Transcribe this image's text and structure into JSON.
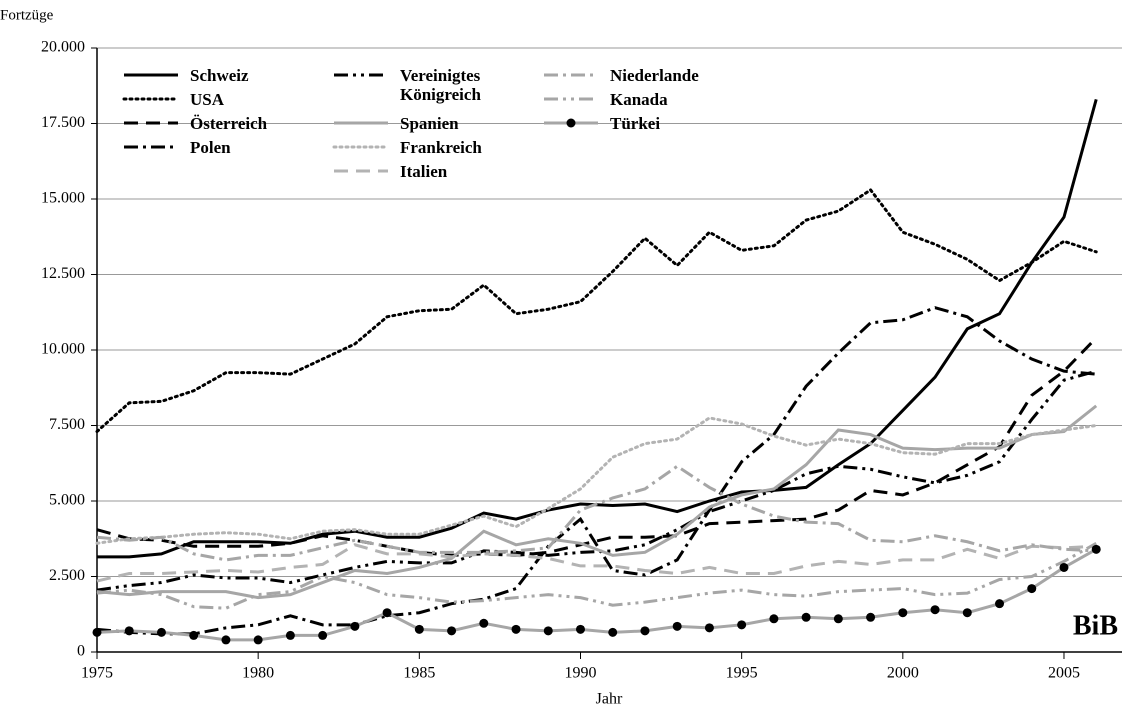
{
  "chart_data": {
    "type": "line",
    "y_label": "Fortzüge",
    "x_label": "Jahr",
    "logo": "BiB",
    "x": [
      1975,
      1976,
      1977,
      1978,
      1979,
      1980,
      1981,
      1982,
      1983,
      1984,
      1985,
      1986,
      1987,
      1988,
      1989,
      1990,
      1991,
      1992,
      1993,
      1994,
      1995,
      1996,
      1997,
      1998,
      1999,
      2000,
      2001,
      2002,
      2003,
      2004,
      2005,
      2006
    ],
    "xlim": [
      1975,
      2006.8
    ],
    "xticks": [
      1975,
      1980,
      1985,
      1990,
      1995,
      2000,
      2005
    ],
    "ylim": [
      0,
      20000
    ],
    "yticks": [
      0,
      {
        "value": 2500,
        "label": "2.500"
      },
      {
        "value": 5000,
        "label": "5.000"
      },
      {
        "value": 7500,
        "label": "7.500"
      },
      {
        "value": 10000,
        "label": "10.000"
      },
      {
        "value": 12500,
        "label": "12.500"
      },
      {
        "value": 15000,
        "label": "15.000"
      },
      {
        "value": 17500,
        "label": "17.500"
      },
      {
        "value": 20000,
        "label": "20.000"
      }
    ],
    "grid": true,
    "legend": "upper left",
    "series": [
      {
        "name": "Schweiz",
        "color": "#000000",
        "style": "solid",
        "values": [
          3150,
          3150,
          3250,
          3650,
          3650,
          3650,
          3600,
          3900,
          4000,
          3800,
          3800,
          4100,
          4600,
          4400,
          4700,
          4900,
          4850,
          4900,
          4650,
          5000,
          5300,
          5350,
          5450,
          6200,
          6900,
          8000,
          9100,
          10700,
          11200,
          12900,
          14400,
          18300
        ]
      },
      {
        "name": "USA",
        "color": "#000000",
        "style": "dotted",
        "values": [
          7300,
          8250,
          8300,
          8650,
          9250,
          9250,
          9200,
          9700,
          10200,
          11100,
          11300,
          11350,
          12150,
          11200,
          11350,
          11600,
          12600,
          13700,
          12800,
          13900,
          13300,
          13450,
          14300,
          14600,
          15300,
          13900,
          13500,
          13000,
          12300,
          12900,
          13600,
          13250
        ]
      },
      {
        "name": "Österreich",
        "color": "#000000",
        "style": "dashed",
        "values": [
          4050,
          3750,
          3700,
          3500,
          3500,
          3500,
          3600,
          3850,
          3700,
          3500,
          3300,
          3200,
          3250,
          3200,
          3300,
          3550,
          3800,
          3800,
          3850,
          4250,
          4300,
          4350,
          4400,
          4700,
          5350,
          5200,
          5600,
          6200,
          6800,
          8500,
          9300,
          10400
        ]
      },
      {
        "name": "Polen",
        "color": "#000000",
        "style": "dashdot",
        "values": [
          750,
          650,
          600,
          600,
          800,
          900,
          1200,
          900,
          900,
          1200,
          1300,
          1600,
          1750,
          2100,
          3500,
          4400,
          2700,
          2550,
          3050,
          4700,
          6300,
          7200,
          8800,
          9900,
          10900,
          11000,
          11400,
          11100,
          10300,
          9700,
          9300,
          9200
        ]
      },
      {
        "name": "Vereinigtes Königreich",
        "color": "#000000",
        "style": "dashdotdot",
        "values": [
          2050,
          2200,
          2300,
          2550,
          2450,
          2450,
          2300,
          2550,
          2800,
          3000,
          2950,
          2950,
          3350,
          3300,
          3200,
          3300,
          3350,
          3550,
          4050,
          4650,
          5000,
          5350,
          5900,
          6150,
          6050,
          5800,
          5600,
          5850,
          6300,
          7700,
          9000,
          9300
        ]
      },
      {
        "name": "Spanien",
        "color": "#a6a6a6",
        "style": "solid",
        "values": [
          2000,
          1900,
          2000,
          2000,
          2000,
          1800,
          1900,
          2300,
          2700,
          2600,
          2800,
          3100,
          4000,
          3550,
          3750,
          3600,
          3200,
          3300,
          3900,
          4800,
          5200,
          5400,
          6200,
          7350,
          7200,
          6750,
          6700,
          6750,
          6750,
          7200,
          7300,
          8150
        ]
      },
      {
        "name": "Frankreich",
        "color": "#b3b3b3",
        "style": "dotted",
        "values": [
          3600,
          3750,
          3800,
          3900,
          3950,
          3900,
          3750,
          4000,
          4050,
          3900,
          3900,
          4200,
          4500,
          4150,
          4750,
          5400,
          6450,
          6900,
          7050,
          7750,
          7550,
          7150,
          6850,
          7050,
          6900,
          6600,
          6550,
          6900,
          6900,
          7200,
          7350,
          7500
        ]
      },
      {
        "name": "Italien",
        "color": "#b3b3b3",
        "style": "dashed",
        "values": [
          2350,
          2600,
          2600,
          2650,
          2700,
          2650,
          2800,
          2900,
          3550,
          3250,
          3250,
          3150,
          3250,
          3200,
          3100,
          2850,
          2850,
          2700,
          2600,
          2800,
          2600,
          2600,
          2850,
          3000,
          2900,
          3050,
          3050,
          3400,
          3100,
          3500,
          3450,
          3500
        ]
      },
      {
        "name": "Niederlande",
        "color": "#a6a6a6",
        "style": "dashdot",
        "values": [
          3800,
          3700,
          3800,
          3250,
          3050,
          3200,
          3200,
          3450,
          3700,
          3500,
          3300,
          3300,
          3300,
          3350,
          3450,
          4700,
          5100,
          5400,
          6150,
          5450,
          4900,
          4500,
          4300,
          4250,
          3700,
          3650,
          3850,
          3650,
          3350,
          3550,
          3400,
          3350
        ]
      },
      {
        "name": "Kanada",
        "color": "#a6a6a6",
        "style": "dashdotdot",
        "values": [
          1950,
          2050,
          1900,
          1500,
          1450,
          1900,
          2000,
          2500,
          2300,
          1900,
          1800,
          1650,
          1700,
          1800,
          1900,
          1800,
          1550,
          1650,
          1800,
          1950,
          2050,
          1900,
          1850,
          2000,
          2050,
          2100,
          1900,
          1950,
          2400,
          2500,
          3000,
          3600
        ]
      },
      {
        "name": "Türkei",
        "color": "#a6a6a6",
        "style": "solid",
        "marker": "circle",
        "values": [
          650,
          700,
          650,
          550,
          400,
          400,
          550,
          550,
          850,
          1300,
          750,
          700,
          950,
          750,
          700,
          750,
          650,
          700,
          850,
          800,
          900,
          1100,
          1150,
          1100,
          1150,
          1300,
          1400,
          1300,
          1600,
          2100,
          2800,
          3400
        ]
      }
    ]
  }
}
